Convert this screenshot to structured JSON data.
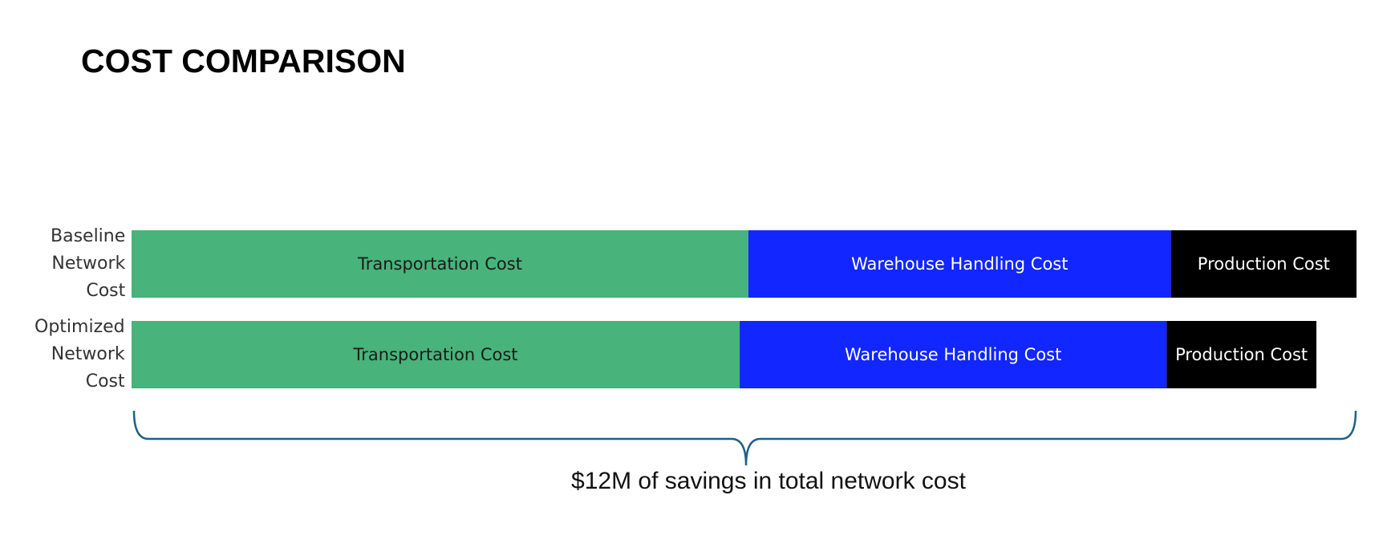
{
  "chart_data": {
    "type": "stacked-bar-horizontal",
    "title": "COST COMPARISON",
    "categories": [
      "Baseline Network Cost",
      "Optimized Network Cost"
    ],
    "series": [
      {
        "name": "Transportation Cost",
        "color": "#48b37a",
        "values": [
          184.5,
          181.9
        ]
      },
      {
        "name": "Warehouse Handling Cost",
        "color": "#1226ff",
        "values": [
          126.4,
          127.7
        ]
      },
      {
        "name": "Production Cost",
        "color": "#000000",
        "values": [
          55.5,
          44.8
        ]
      }
    ],
    "xlim": [
      0,
      366.4
    ],
    "annotation": "$12M of savings in total network cost"
  }
}
